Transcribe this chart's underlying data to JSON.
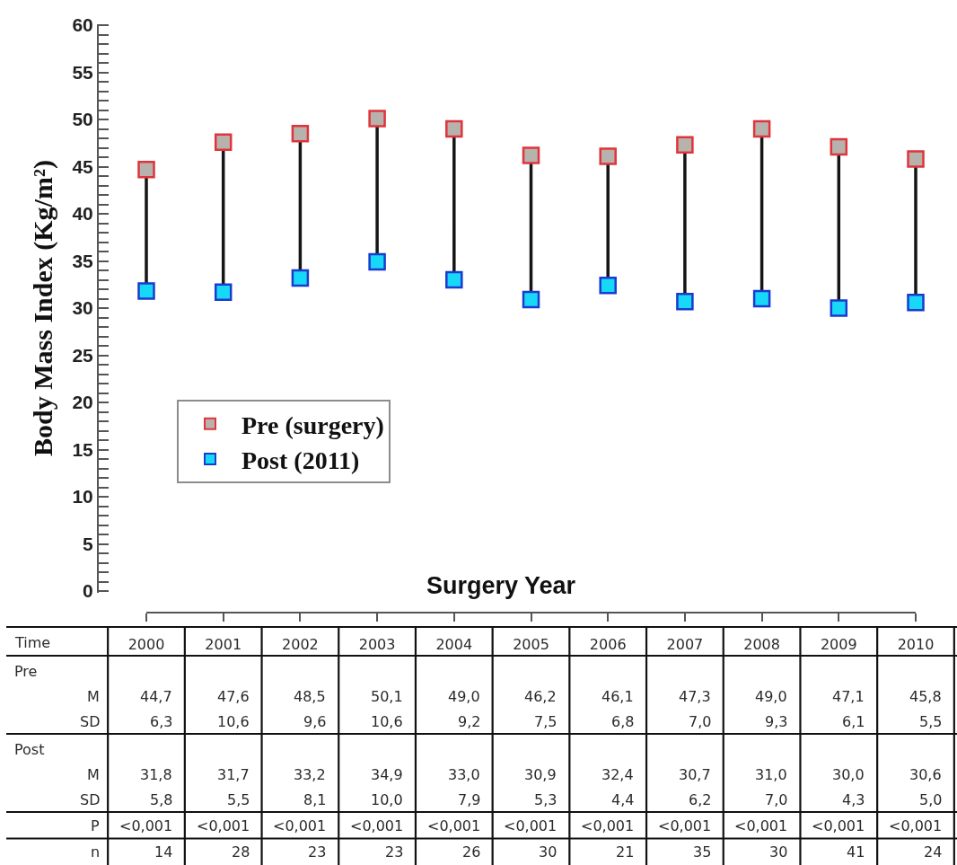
{
  "chart_data": [
    {
      "type": "scatter",
      "xlabel": "Surgery Year",
      "ylabel": "Body Mass Index (Kg/m²)",
      "categories": [
        "2000",
        "2001",
        "2002",
        "2003",
        "2004",
        "2005",
        "2006",
        "2007",
        "2008",
        "2009",
        "2010"
      ],
      "series": [
        {
          "name": "Pre (surgery)",
          "color": "#b8b2ad",
          "values": [
            44.7,
            47.6,
            48.5,
            50.1,
            49.0,
            46.2,
            46.1,
            47.3,
            49.0,
            47.1,
            45.8
          ]
        },
        {
          "name": "Post (2011)",
          "color": "#18d8f8",
          "values": [
            31.8,
            31.7,
            33.2,
            34.9,
            33.0,
            30.9,
            32.4,
            30.7,
            31.0,
            30.0,
            30.6
          ]
        }
      ],
      "ylim": [
        0,
        60
      ],
      "yticks": [
        0,
        {
          "value": 1,
          "label": null
        },
        {
          "value": 2,
          "label": null
        },
        {
          "value": 3,
          "label": null
        },
        {
          "value": 4,
          "label": null
        },
        5,
        {
          "value": 6,
          "label": null
        },
        {
          "value": 7,
          "label": null
        },
        {
          "value": 8,
          "label": null
        },
        {
          "value": 9,
          "label": null
        },
        10,
        {
          "value": 11,
          "label": null
        },
        {
          "value": 12,
          "label": null
        },
        {
          "value": 13,
          "label": null
        },
        {
          "value": 14,
          "label": null
        },
        15,
        {
          "value": 16,
          "label": null
        },
        {
          "value": 17,
          "label": null
        },
        {
          "value": 18,
          "label": null
        },
        {
          "value": 19,
          "label": null
        },
        20,
        {
          "value": 21,
          "label": null
        },
        {
          "value": 22,
          "label": null
        },
        {
          "value": 23,
          "label": null
        },
        {
          "value": 24,
          "label": null
        },
        25,
        {
          "value": 26,
          "label": null
        },
        {
          "value": 27,
          "label": null
        },
        {
          "value": 28,
          "label": null
        },
        {
          "value": 29,
          "label": null
        },
        30,
        {
          "value": 31,
          "label": null
        },
        {
          "value": 32,
          "label": null
        },
        {
          "value": 33,
          "label": null
        },
        {
          "value": 34,
          "label": null
        },
        35,
        {
          "value": 36,
          "label": null
        },
        {
          "value": 37,
          "label": null
        },
        {
          "value": 38,
          "label": null
        },
        {
          "value": 39,
          "label": null
        },
        40,
        {
          "value": 41,
          "label": null
        },
        {
          "value": 42,
          "label": null
        },
        {
          "value": 43,
          "label": null
        },
        {
          "value": 44,
          "label": null
        },
        45,
        {
          "value": 46,
          "label": null
        },
        {
          "value": 47,
          "label": null
        },
        {
          "value": 48,
          "label": null
        },
        {
          "value": 49,
          "label": null
        },
        50,
        {
          "value": 51,
          "label": null
        },
        {
          "value": 52,
          "label": null
        },
        {
          "value": 53,
          "label": null
        },
        {
          "value": 54,
          "label": null
        },
        55,
        {
          "value": 56,
          "label": null
        },
        {
          "value": 57,
          "label": null
        },
        {
          "value": 58,
          "label": null
        },
        {
          "value": 59,
          "label": null
        },
        60
      ],
      "marker": "square",
      "legend": "bottom left"
    },
    {
      "type": "other",
      "xlabel": "Time",
      "y_categories": [
        "Pre",
        "M",
        "SD",
        "Post",
        "M",
        "SD",
        "P",
        "n"
      ],
      "cell_labels": [
        [
          null,
          null,
          null,
          null,
          null,
          null,
          null,
          null,
          null,
          null,
          null
        ],
        [
          "44,7",
          "47,6",
          "48,5",
          "50,1",
          "49,0",
          "46,2",
          "46,1",
          "47,3",
          "49,0",
          "47,1",
          "45,8"
        ],
        [
          "6,3",
          "10,6",
          "9,6",
          "10,6",
          "9,2",
          "7,5",
          "6,8",
          "7,0",
          "9,3",
          "6,1",
          "5,5"
        ],
        [
          null,
          null,
          null,
          null,
          null,
          null,
          null,
          null,
          null,
          null,
          null
        ],
        [
          "31,8",
          "31,7",
          "33,2",
          "34,9",
          "33,0",
          "30,9",
          "32,4",
          "30,7",
          "31,0",
          "30,0",
          "30,6"
        ],
        [
          "5,8",
          "5,5",
          "8,1",
          "10,0",
          "7,9",
          "5,3",
          "4,4",
          "6,2",
          "7,0",
          "4,3",
          "5,0"
        ],
        [
          "<0,001",
          "<0,001",
          "<0,001",
          "<0,001",
          "<0,001",
          "<0,001",
          "<0,001",
          "<0,001",
          "<0,001",
          "<0,001",
          "<0,001"
        ],
        [
          "14",
          "28",
          "23",
          "23",
          "26",
          "30",
          "21",
          "35",
          "30",
          "41",
          "24"
        ]
      ]
    }
  ]
}
